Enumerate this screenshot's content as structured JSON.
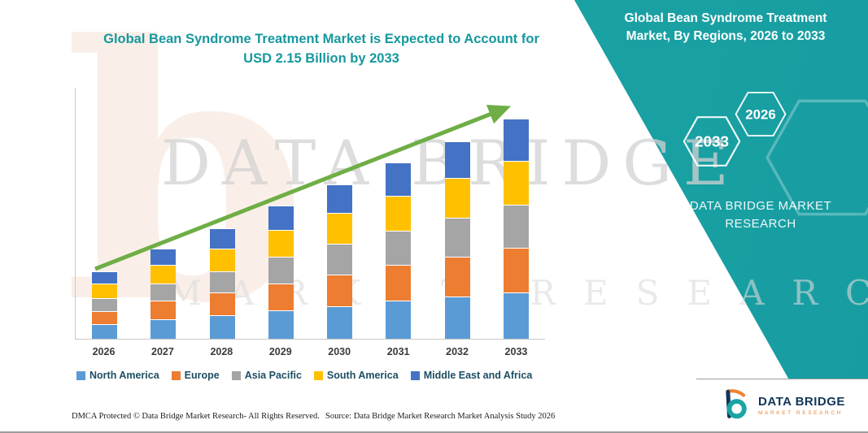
{
  "page": {
    "accent_teal": "#1ca4a5",
    "title_color": "#16989e",
    "arrow_color": "#6fae46"
  },
  "chart_data": {
    "type": "bar",
    "subtype": "stacked-column",
    "title": "Global Bean Syndrome Treatment Market is Expected to Account for USD 2.15 Billion by 2033",
    "unit": "USD Billion",
    "categories": [
      "2026",
      "2027",
      "2028",
      "2029",
      "2030",
      "2031",
      "2032",
      "2033"
    ],
    "series": [
      {
        "name": "North America",
        "color": "#5B9BD5",
        "values": [
          0.14,
          0.19,
          0.23,
          0.28,
          0.32,
          0.37,
          0.41,
          0.45
        ]
      },
      {
        "name": "Europe",
        "color": "#ED7D31",
        "values": [
          0.13,
          0.18,
          0.22,
          0.26,
          0.31,
          0.35,
          0.39,
          0.44
        ]
      },
      {
        "name": "Asia Pacific",
        "color": "#A5A5A5",
        "values": [
          0.13,
          0.17,
          0.21,
          0.26,
          0.3,
          0.34,
          0.38,
          0.42
        ]
      },
      {
        "name": "South America",
        "color": "#FFC000",
        "values": [
          0.14,
          0.18,
          0.22,
          0.26,
          0.3,
          0.34,
          0.39,
          0.43
        ]
      },
      {
        "name": "Middle East and Africa",
        "color": "#4472C4",
        "values": [
          0.12,
          0.16,
          0.2,
          0.24,
          0.28,
          0.32,
          0.36,
          0.41
        ]
      }
    ],
    "totals": [
      0.66,
      0.88,
      1.08,
      1.3,
      1.51,
      1.72,
      1.93,
      2.15
    ],
    "ylim": [
      0,
      2.3
    ],
    "grid": false,
    "legend_position": "bottom",
    "annotations": [
      "Upward green trend arrow across bars"
    ]
  },
  "side_panel": {
    "title": "Global Bean Syndrome Treatment Market, By Regions, 2026 to 2033",
    "hexagons": [
      "2033",
      "2026"
    ],
    "brand_line1": "DATA BRIDGE MARKET",
    "brand_line2": "RESEARCH"
  },
  "watermark": {
    "letter": "b",
    "line1": "DATA BRIDGE",
    "line2": "MARKET RESEARCH"
  },
  "footer": {
    "dmca": "DMCA Protected © Data Bridge Market Research-  All Rights Reserved.",
    "source": "Source: Data Bridge Market Research  Market Analysis Study 2026"
  },
  "logo": {
    "brand": "DATA BRIDGE",
    "tagline": "MARKET RESEARCH"
  }
}
